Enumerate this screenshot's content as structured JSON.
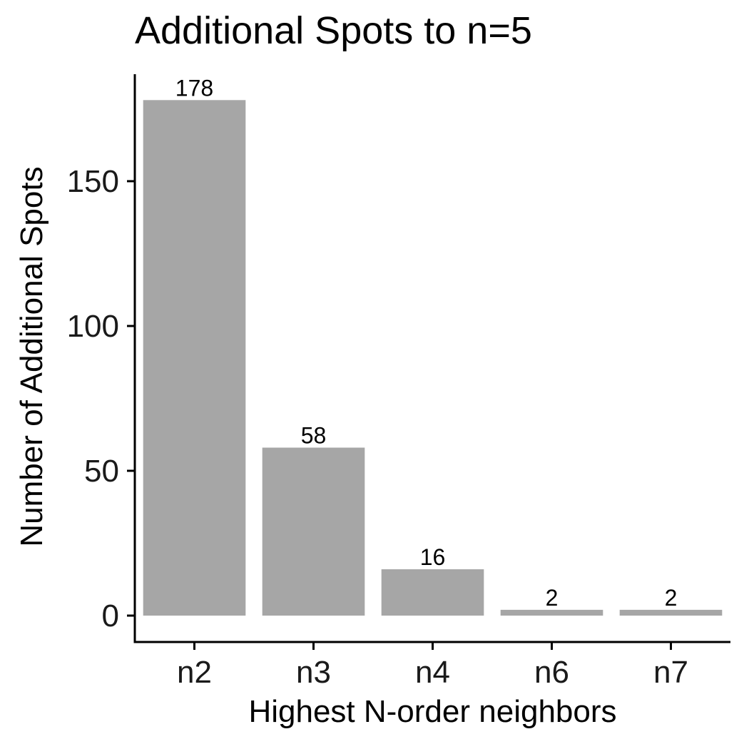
{
  "chart_data": {
    "type": "bar",
    "title": "Additional Spots to n=5",
    "xlabel": "Highest N-order neighbors",
    "ylabel": "Number of Additional Spots",
    "categories": [
      "n2",
      "n3",
      "n4",
      "n6",
      "n7"
    ],
    "values": [
      178,
      58,
      16,
      2,
      2
    ],
    "data_labels": [
      "178",
      "58",
      "16",
      "2",
      "2"
    ],
    "y_ticks": [
      0,
      50,
      100,
      150
    ],
    "y_tick_labels": [
      "0",
      "50",
      "100",
      "150"
    ],
    "ylim": [
      -8.9,
      186.9
    ],
    "grid": false,
    "legend": "none",
    "bar_color": "#A6A6A6",
    "axis_color": "#000000"
  }
}
